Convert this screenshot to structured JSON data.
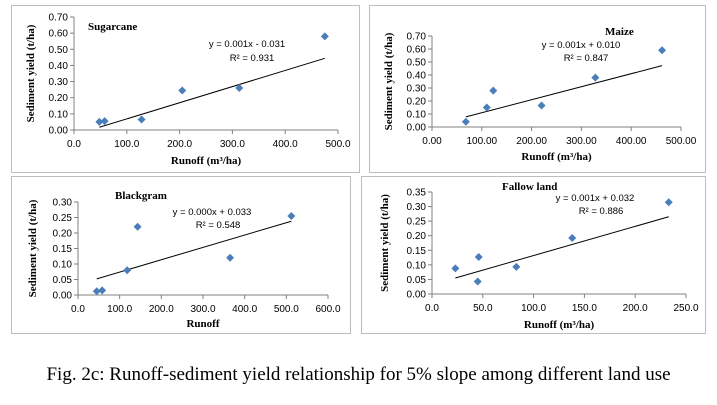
{
  "caption": "Fig. 2c: Runoff-sediment yield relationship for 5% slope among different land use",
  "chart_data": [
    {
      "type": "scatter",
      "title": "Sugarcane",
      "xlabel": "Runoff (m³/ha)",
      "ylabel": "Sediment yield (t/ha)",
      "xlim": [
        0,
        500
      ],
      "ylim": [
        0,
        0.7
      ],
      "xticks": [
        "0.0",
        "100.0",
        "200.0",
        "300.0",
        "400.0",
        "500.0"
      ],
      "yticks": [
        "0.00",
        "0.10",
        "0.20",
        "0.30",
        "0.40",
        "0.50",
        "0.60",
        "0.70"
      ],
      "points": [
        [
          48,
          0.05
        ],
        [
          58,
          0.055
        ],
        [
          128,
          0.065
        ],
        [
          205,
          0.245
        ],
        [
          313,
          0.26
        ],
        [
          475,
          0.58
        ]
      ],
      "trendline": {
        "slope": 0.001,
        "intercept": -0.031
      },
      "equation": "y = 0.001x - 0.031",
      "r2": "R² = 0.931",
      "marker_color": "#4a7ebb",
      "grid": false
    },
    {
      "type": "scatter",
      "title": "Maize",
      "xlabel": "Runoff (m³/ha)",
      "ylabel": "Sediment yield (t/ha)",
      "xlim": [
        0,
        500
      ],
      "ylim": [
        0,
        0.7
      ],
      "xticks": [
        "0.00",
        "100.00",
        "200.00",
        "300.00",
        "400.00",
        "500.00"
      ],
      "yticks": [
        "0.00",
        "0.10",
        "0.20",
        "0.30",
        "0.40",
        "0.50",
        "0.60",
        "0.70"
      ],
      "points": [
        [
          68,
          0.04
        ],
        [
          110,
          0.15
        ],
        [
          123,
          0.28
        ],
        [
          220,
          0.165
        ],
        [
          328,
          0.38
        ],
        [
          462,
          0.59
        ]
      ],
      "trendline": {
        "slope": 0.001,
        "intercept": 0.01
      },
      "equation": "y = 0.001x + 0.010",
      "r2": "R² = 0.847",
      "marker_color": "#4a7ebb",
      "grid": false
    },
    {
      "type": "scatter",
      "title": "Blackgram",
      "xlabel": "Runoff",
      "ylabel": "Sediment yield (t/ha)",
      "xlim": [
        0,
        600
      ],
      "ylim": [
        0,
        0.3
      ],
      "xticks": [
        "0.0",
        "100.0",
        "200.0",
        "300.0",
        "400.0",
        "500.0",
        "600.0"
      ],
      "yticks": [
        "0.00",
        "0.05",
        "0.10",
        "0.15",
        "0.20",
        "0.25",
        "0.30"
      ],
      "points": [
        [
          45,
          0.012
        ],
        [
          58,
          0.015
        ],
        [
          118,
          0.08
        ],
        [
          143,
          0.22
        ],
        [
          365,
          0.12
        ],
        [
          512,
          0.255
        ]
      ],
      "trendline": {
        "x": [
          45,
          512
        ],
        "y": [
          0.052,
          0.238
        ]
      },
      "equation": "y = 0.000x + 0.033",
      "r2": "R² = 0.548",
      "marker_color": "#4a7ebb",
      "grid": false
    },
    {
      "type": "scatter",
      "title": "Fallow land",
      "xlabel": "Runoff (m³/ha)",
      "ylabel": "Sediment yield (t/ha)",
      "xlim": [
        0,
        250
      ],
      "ylim": [
        0,
        0.35
      ],
      "xticks": [
        "0.0",
        "50.0",
        "100.0",
        "150.0",
        "200.0",
        "250.0"
      ],
      "yticks": [
        "0.00",
        "0.05",
        "0.10",
        "0.15",
        "0.20",
        "0.25",
        "0.30",
        "0.35"
      ],
      "points": [
        [
          23,
          0.088
        ],
        [
          45,
          0.043
        ],
        [
          46,
          0.127
        ],
        [
          83,
          0.093
        ],
        [
          138,
          0.192
        ],
        [
          233,
          0.315
        ]
      ],
      "trendline": {
        "slope": 0.001,
        "intercept": 0.032
      },
      "equation": "y = 0.001x + 0.032",
      "r2": "R² = 0.886",
      "marker_color": "#4a7ebb",
      "grid": false
    }
  ]
}
